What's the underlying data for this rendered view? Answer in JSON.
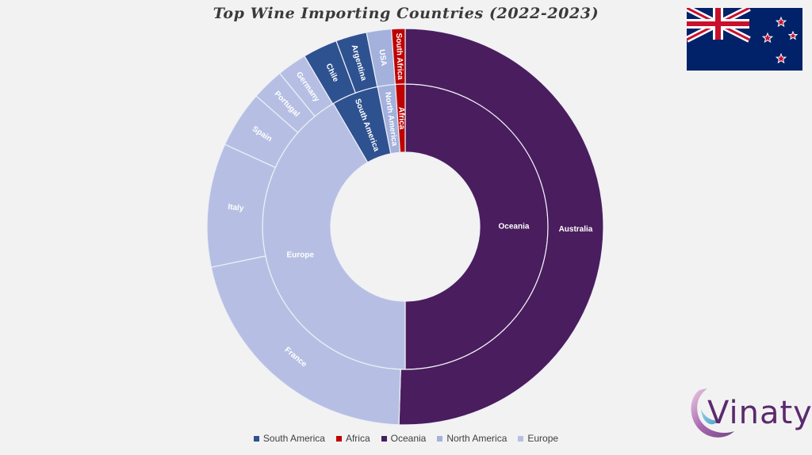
{
  "title": "Top Wine Importing Countries (2022-2023)",
  "colors": {
    "south_america": "#2e5190",
    "africa": "#c00000",
    "oceania": "#4a1d5e",
    "north_america": "#a3b1dc",
    "europe": "#b6bfe3",
    "separator": "#eef0f6"
  },
  "chart_data": {
    "type": "sunburst",
    "title": "Top Wine Importing Countries (2022-2023)",
    "start_angle_deg": 0,
    "inner": [
      {
        "name": "Oceania",
        "value": 50.0,
        "color_key": "oceania"
      },
      {
        "name": "Europe",
        "value": 41.6,
        "color_key": "europe"
      },
      {
        "name": "South America",
        "value": 5.3,
        "color_key": "south_america"
      },
      {
        "name": "North America",
        "value": 2.0,
        "color_key": "north_america"
      },
      {
        "name": "Africa",
        "value": 1.1,
        "color_key": "africa"
      }
    ],
    "outer": [
      {
        "name": "Australia",
        "parent": "Oceania",
        "value": 50.0,
        "color_key": "oceania"
      },
      {
        "name": "France",
        "parent": "Europe",
        "value": 21.0,
        "color_key": "europe"
      },
      {
        "name": "Italy",
        "parent": "Europe",
        "value": 10.0,
        "color_key": "europe"
      },
      {
        "name": "Spain",
        "parent": "Europe",
        "value": 4.6,
        "color_key": "europe"
      },
      {
        "name": "Portugal",
        "parent": "Europe",
        "value": 2.6,
        "color_key": "europe"
      },
      {
        "name": "Germany",
        "parent": "Europe",
        "value": 2.4,
        "color_key": "europe"
      },
      {
        "name": "Chile",
        "parent": "South America",
        "value": 2.8,
        "color_key": "south_america"
      },
      {
        "name": "Argentina",
        "parent": "South America",
        "value": 2.5,
        "color_key": "south_america"
      },
      {
        "name": "USA",
        "parent": "North America",
        "value": 2.0,
        "color_key": "north_america"
      },
      {
        "name": "South Africa",
        "parent": "Africa",
        "value": 1.1,
        "color_key": "africa"
      }
    ],
    "legend": [
      {
        "label": "South America",
        "color_key": "south_america"
      },
      {
        "label": "Africa",
        "color_key": "africa"
      },
      {
        "label": "Oceania",
        "color_key": "oceania"
      },
      {
        "label": "North America",
        "color_key": "north_america"
      },
      {
        "label": "Europe",
        "color_key": "europe"
      }
    ],
    "legend_position": "bottom"
  },
  "flag": {
    "icon": "new-zealand-flag-icon"
  },
  "logo": {
    "text": "Vinaty",
    "icon": "vinaty-logo-icon"
  }
}
